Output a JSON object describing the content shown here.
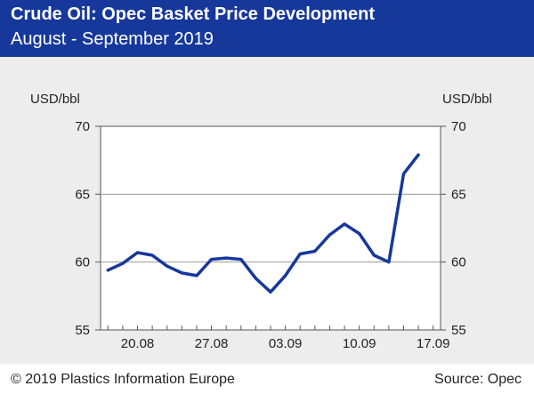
{
  "header": {
    "title": "Crude Oil: Opec Basket Price Development",
    "subtitle": "August - September 2019"
  },
  "footer": {
    "copyright": "© 2019 Plastics Information Europe",
    "source": "Source: Opec"
  },
  "colors": {
    "header_bg": "#17389b",
    "line": "#17389b",
    "plot_bg": "#ededed"
  },
  "chart_data": {
    "type": "line",
    "ylabel_left": "USD/bbl",
    "ylabel_right": "USD/bbl",
    "ylim": [
      55,
      70
    ],
    "yticks": [
      55,
      60,
      65,
      70
    ],
    "grid": "horizontal",
    "x_tick_labels": [
      "20.08",
      "27.08",
      "03.09",
      "10.09",
      "17.09"
    ],
    "x_tick_positions": [
      3,
      8,
      13,
      18,
      23
    ],
    "series": [
      {
        "x": [
          1,
          2,
          3,
          4,
          5,
          6,
          7,
          8,
          9,
          10,
          11,
          12,
          13,
          14,
          15,
          16,
          17,
          18,
          19,
          20,
          21,
          22,
          23
        ],
        "values": [
          59.4,
          59.9,
          60.7,
          60.5,
          59.7,
          59.2,
          59.0,
          60.2,
          60.3,
          60.2,
          58.8,
          57.8,
          59.0,
          60.6,
          60.8,
          62.0,
          62.8,
          62.1,
          60.5,
          60.0,
          66.5,
          67.9,
          null
        ]
      }
    ]
  }
}
